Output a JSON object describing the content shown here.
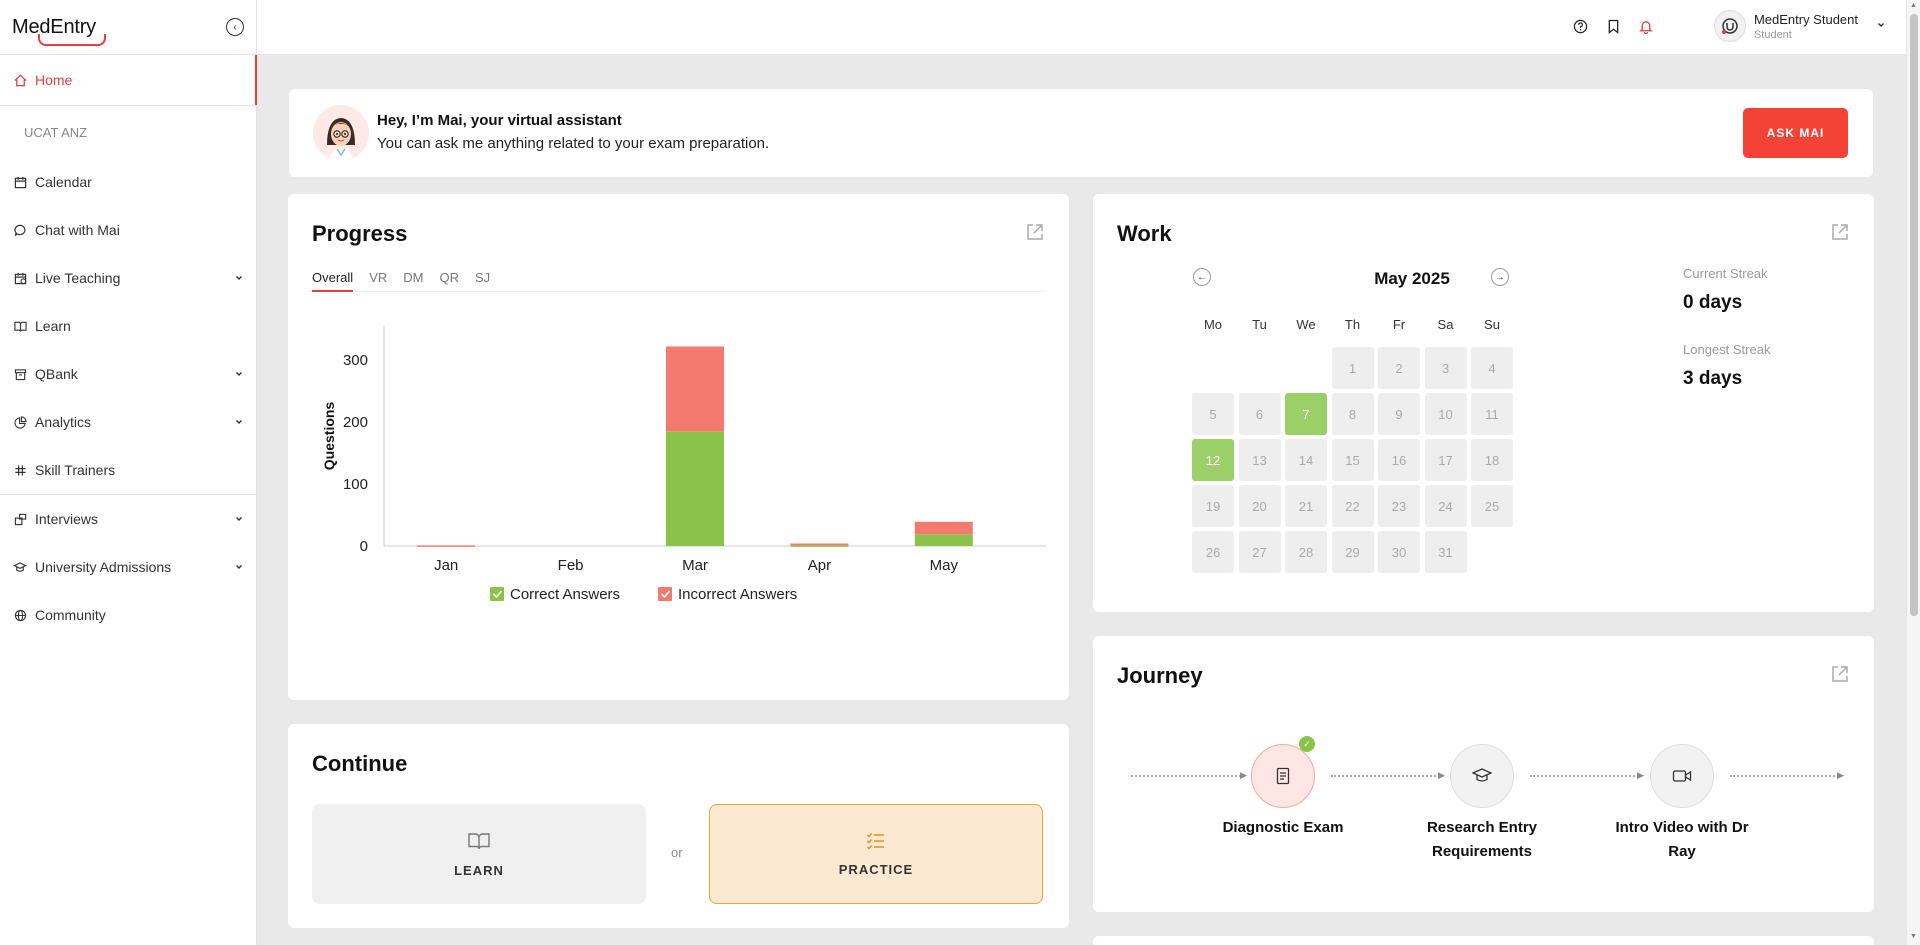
{
  "app": {
    "logo": "MedEntry"
  },
  "sidebar": {
    "items": [
      {
        "label": "Home",
        "icon": "home-icon",
        "active": true
      },
      {
        "label": "Calendar",
        "icon": "calendar-icon"
      },
      {
        "label": "Chat with Mai",
        "icon": "chat-icon"
      },
      {
        "label": "Live Teaching",
        "icon": "live-teaching-icon"
      },
      {
        "label": "Learn",
        "icon": "book-icon"
      },
      {
        "label": "QBank",
        "icon": "archive-icon"
      },
      {
        "label": "Analytics",
        "icon": "pie-chart-icon"
      },
      {
        "label": "Skill Trainers",
        "icon": "hash-icon"
      },
      {
        "label": "Interviews",
        "icon": "interviews-icon"
      },
      {
        "label": "University Admissions",
        "icon": "graduation-cap-icon"
      },
      {
        "label": "Community",
        "icon": "globe-icon"
      }
    ],
    "section": "UCAT ANZ"
  },
  "header": {
    "user_name": "MedEntry Student",
    "user_role": "Student",
    "icons": [
      "help-icon",
      "bookmark-icon",
      "bell-icon"
    ],
    "accent": "#e53e3e"
  },
  "mai": {
    "title": "Hey, I’m Mai, your virtual assistant",
    "subtitle": "You can ask me anything related to your exam preparation.",
    "button": "ASK MAI",
    "button_color": "#f44336"
  },
  "progress": {
    "title": "Progress",
    "tabs": [
      "Overall",
      "VR",
      "DM",
      "QR",
      "SJ"
    ],
    "active_tab": "Overall"
  },
  "chart_data": {
    "type": "bar",
    "stacked": true,
    "categories": [
      "Jan",
      "Feb",
      "Mar",
      "Apr",
      "May"
    ],
    "series": [
      {
        "name": "Correct Answers",
        "values": [
          0,
          0,
          185,
          1,
          19
        ],
        "color": "#8bc34a"
      },
      {
        "name": "Incorrect Answers",
        "values": [
          1,
          0,
          137,
          3,
          20
        ],
        "color": "#f47a6f"
      }
    ],
    "ylabel": "Questions",
    "yticks": [
      0,
      100,
      200,
      300
    ],
    "ylim": [
      0,
      355
    ],
    "legend": "bottom",
    "grid": false
  },
  "work": {
    "title": "Work",
    "month": "May 2025",
    "weekdays": [
      "Mo",
      "Tu",
      "We",
      "Th",
      "Fr",
      "Sa",
      "Su"
    ],
    "first_weekday_index": 3,
    "days_in_month": 31,
    "completed_days": [
      7,
      12
    ],
    "current_streak_label": "Current Streak",
    "current_streak": "0 days",
    "longest_streak_label": "Longest Streak",
    "longest_streak": "3 days"
  },
  "journey": {
    "title": "Journey",
    "steps": [
      {
        "label": "Diagnostic Exam",
        "icon": "document-icon",
        "completed": true
      },
      {
        "label": "Research Entry Requirements",
        "icon": "graduation-cap-icon",
        "completed": false
      },
      {
        "label": "Intro Video with Dr Ray",
        "icon": "video-icon",
        "completed": false
      }
    ]
  },
  "continue": {
    "title": "Continue",
    "learn": "LEARN",
    "or": "or",
    "practice": "PRACTICE"
  }
}
